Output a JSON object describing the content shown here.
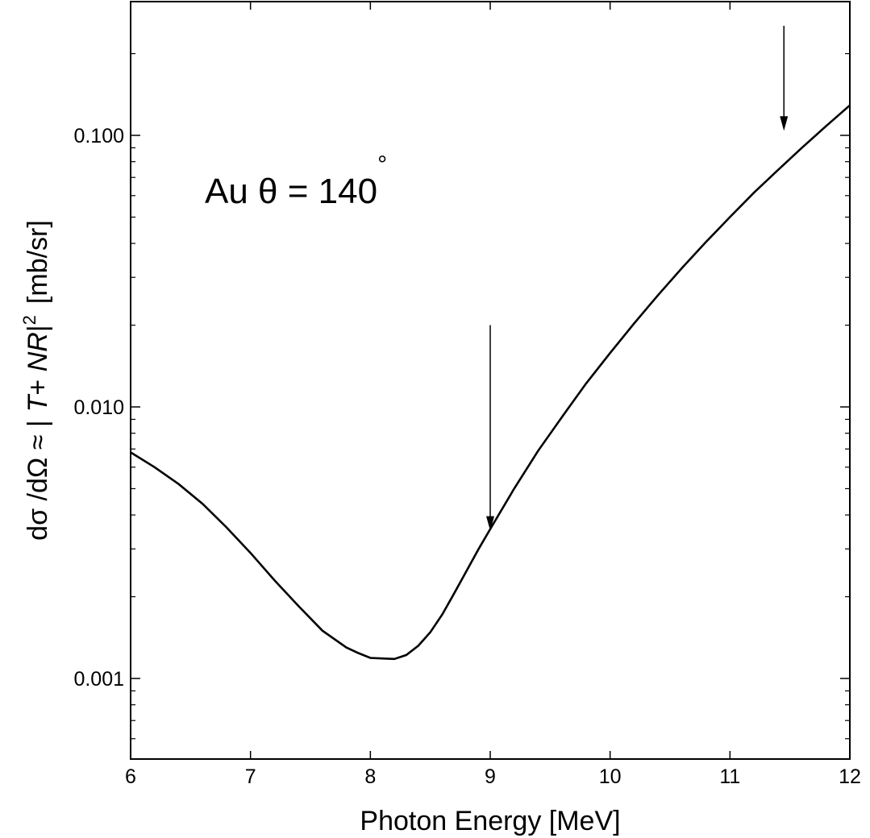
{
  "chart_data": {
    "type": "line",
    "title": "",
    "xlabel": "Photon Energy [MeV]",
    "ylabel": {
      "prefix": "dσ /dΩ ≈ |",
      "italic_1": "T",
      "mid": "+ ",
      "italic_2": "NR",
      "suffix": "|",
      "superscript": "2",
      "units": "[mb/sr]"
    },
    "xlim": [
      6,
      12
    ],
    "ylim": [
      0.0005,
      0.3
    ],
    "yscale": "log",
    "grid": false,
    "x_ticks": [
      6,
      7,
      8,
      9,
      10,
      11,
      12
    ],
    "x_tick_labels": [
      "6",
      "7",
      "8",
      "9",
      "10",
      "11",
      "12"
    ],
    "y_ticks": [
      0.001,
      0.01,
      0.1
    ],
    "y_tick_labels": [
      "0.001",
      "0.010",
      "0.100"
    ],
    "series": [
      {
        "color": "#000000",
        "x": [
          6.0,
          6.2,
          6.4,
          6.6,
          6.8,
          7.0,
          7.2,
          7.4,
          7.6,
          7.8,
          7.9,
          8.0,
          8.1,
          8.2,
          8.3,
          8.4,
          8.5,
          8.6,
          8.7,
          8.8,
          8.9,
          9.0,
          9.2,
          9.4,
          9.6,
          9.8,
          10.0,
          10.2,
          10.4,
          10.6,
          10.8,
          11.0,
          11.2,
          11.4,
          11.6,
          11.8,
          12.0
        ],
        "y": [
          0.0068,
          0.006,
          0.0052,
          0.0044,
          0.0036,
          0.0029,
          0.0023,
          0.00185,
          0.0015,
          0.0013,
          0.00124,
          0.00119,
          0.001185,
          0.00118,
          0.00122,
          0.00132,
          0.00148,
          0.00172,
          0.00206,
          0.00248,
          0.00298,
          0.00355,
          0.005,
          0.0069,
          0.0092,
          0.0122,
          0.0158,
          0.0203,
          0.0258,
          0.0325,
          0.0405,
          0.05,
          0.0615,
          0.0745,
          0.09,
          0.108,
          0.129
        ]
      }
    ],
    "annotations": {
      "label_prefix": "Au θ = 140",
      "label_degree": "°",
      "arrows": [
        {
          "x": 9.0,
          "y_from": 0.02,
          "y_to": 0.0035
        },
        {
          "x": 11.45,
          "y_from": 0.38,
          "y_to": 0.104
        }
      ]
    }
  }
}
